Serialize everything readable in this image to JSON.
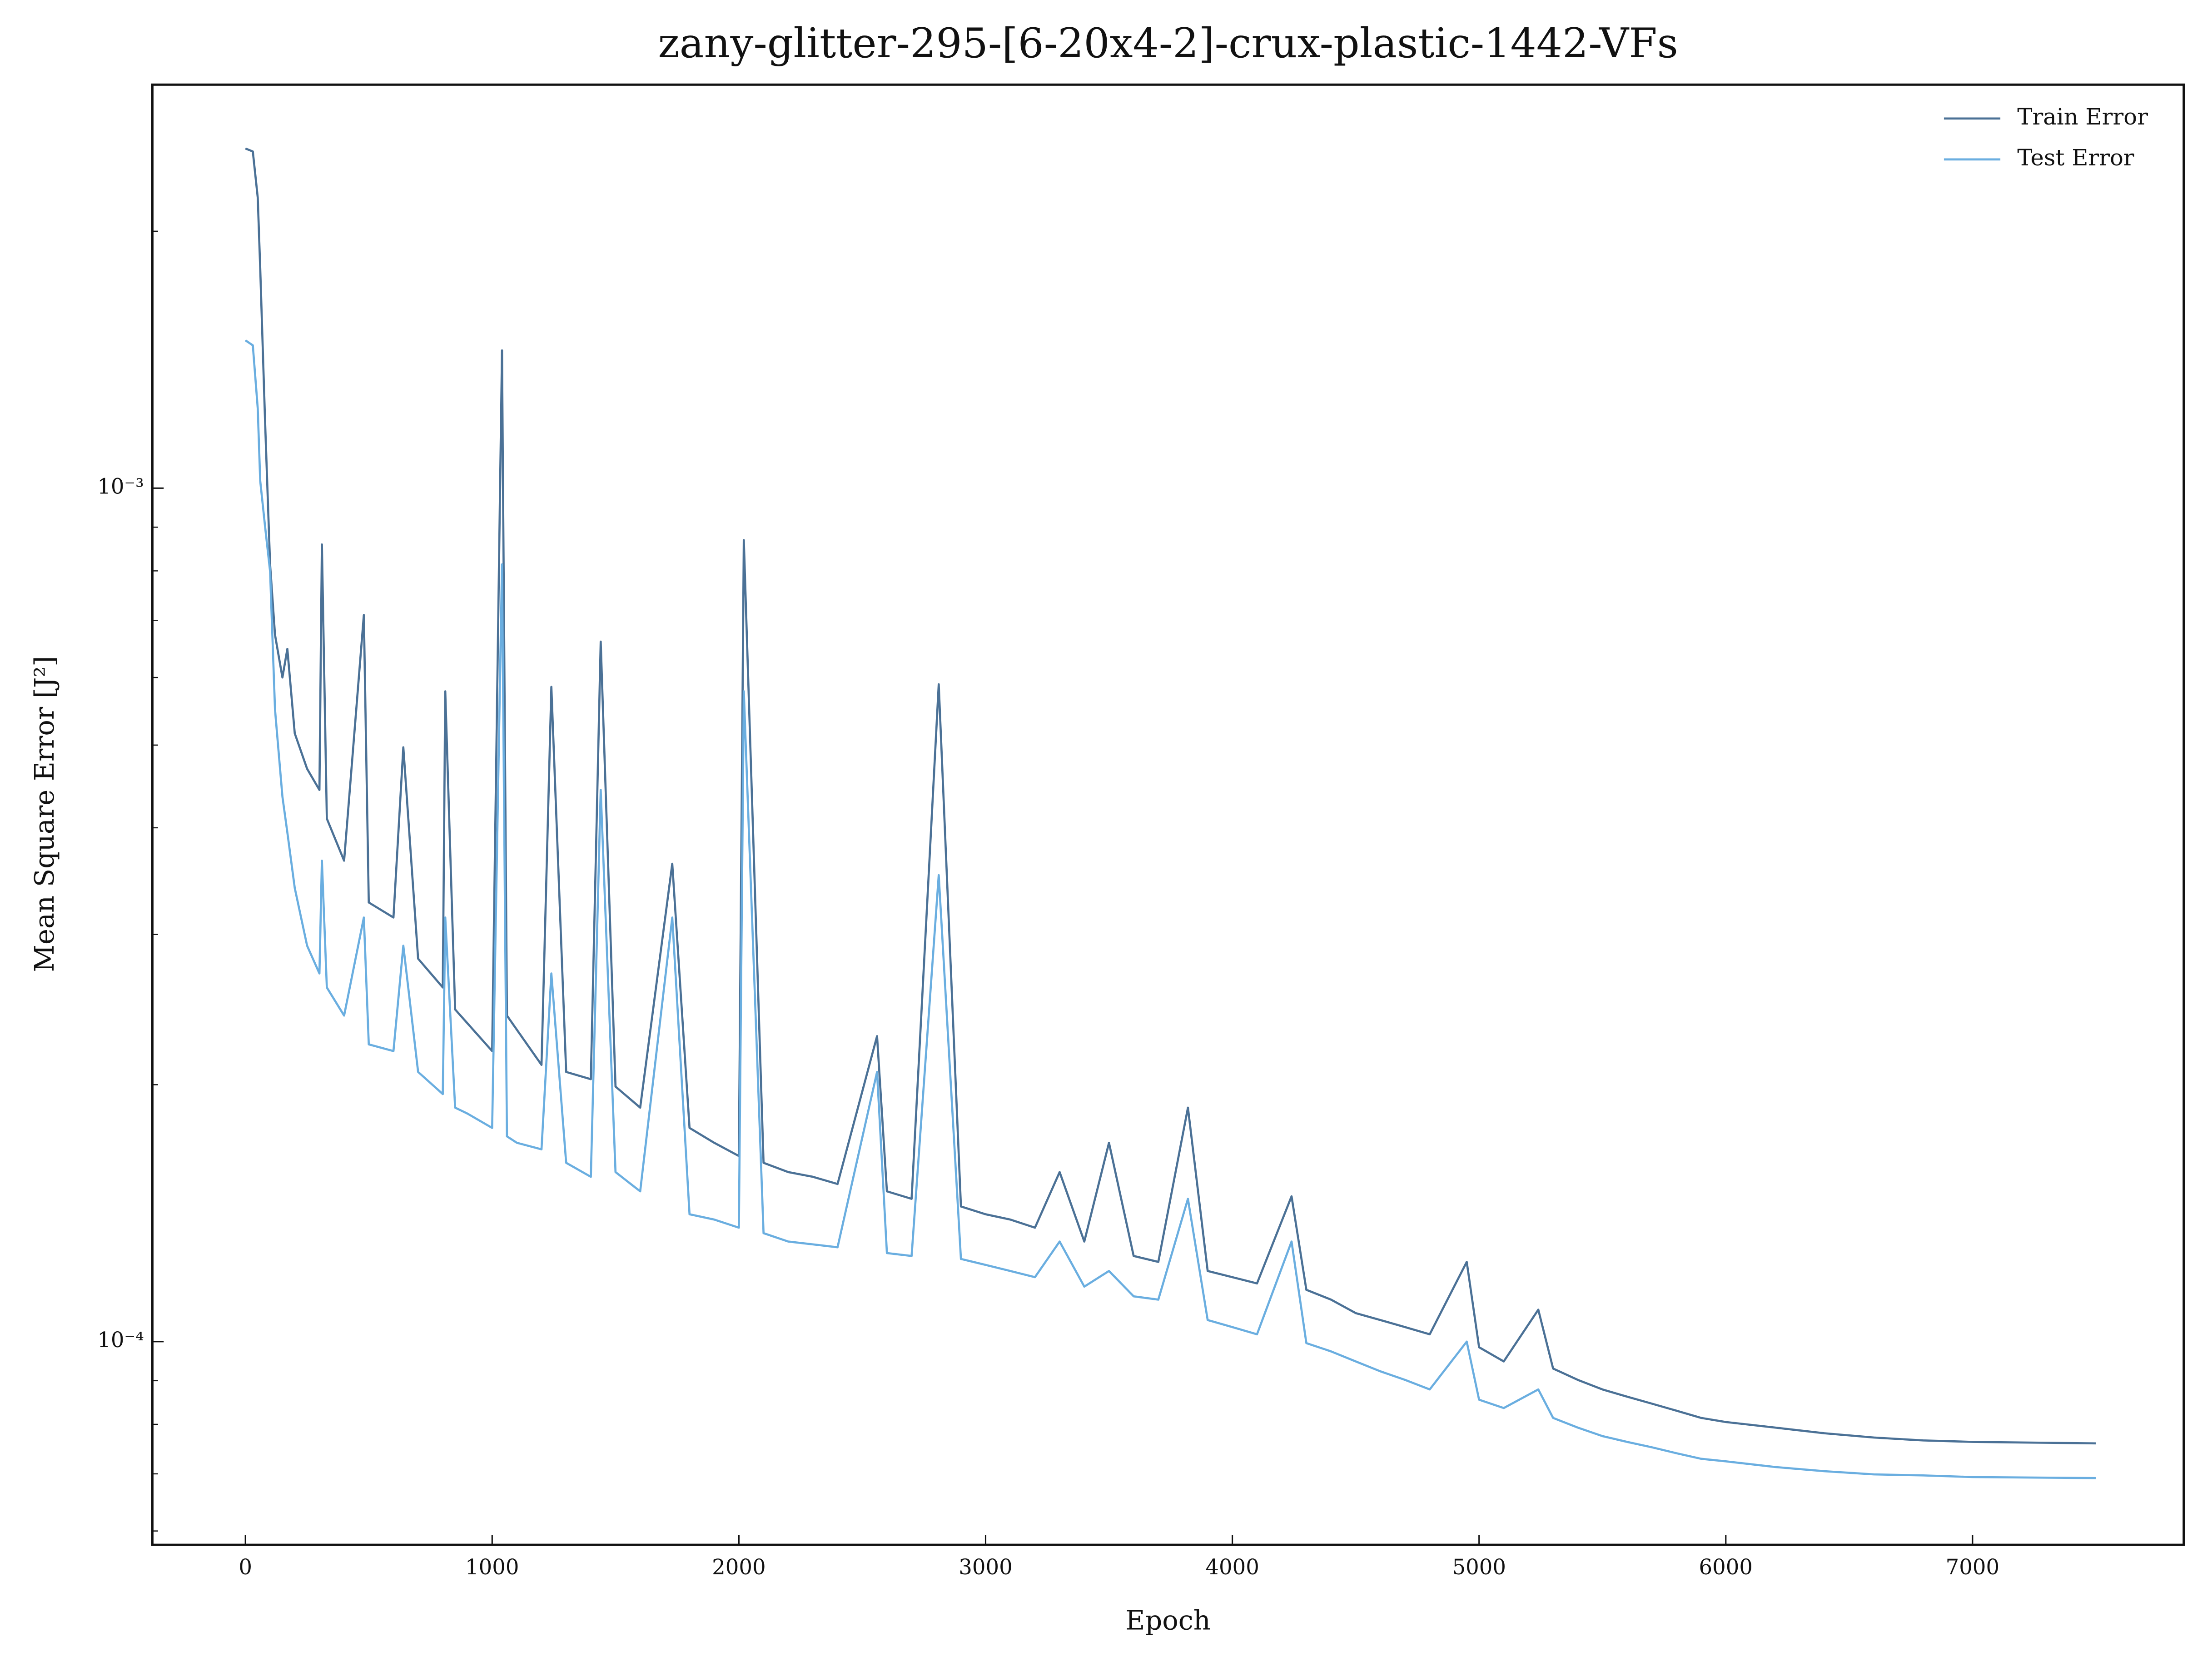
{
  "chart_data": {
    "type": "line",
    "title": "zany-glitter-295-[6-20x4-2]-crux-plastic-1442-VFs",
    "xlabel": "Epoch",
    "ylabel": "Mean Square Error [J²]",
    "yscale": "log",
    "grid": false,
    "legend": "upper right",
    "xlim": [
      -377,
      7856
    ],
    "xticks": [
      0,
      1000,
      2000,
      3000,
      4000,
      5000,
      6000,
      7000
    ],
    "ylim": [
      5.78e-05,
      0.00297
    ],
    "yticks": [
      {
        "value": 0.0001,
        "label": "10⁻⁴"
      },
      {
        "value": 0.001,
        "label": "10⁻³"
      }
    ],
    "yminorticks": [
      6e-05,
      7e-05,
      8e-05,
      9e-05,
      0.0002,
      0.0003,
      0.0004,
      0.0005,
      0.0006,
      0.0007,
      0.0008,
      0.0009,
      0.002
    ],
    "x": [
      0,
      30,
      50,
      60,
      80,
      100,
      120,
      150,
      170,
      200,
      250,
      300,
      310,
      330,
      400,
      480,
      500,
      600,
      640,
      700,
      800,
      810,
      850,
      900,
      1000,
      1040,
      1060,
      1100,
      1200,
      1240,
      1300,
      1400,
      1440,
      1500,
      1600,
      1730,
      1800,
      1900,
      2000,
      2020,
      2100,
      2200,
      2300,
      2400,
      2560,
      2600,
      2700,
      2810,
      2900,
      3000,
      3100,
      3200,
      3300,
      3400,
      3500,
      3600,
      3700,
      3820,
      3900,
      4000,
      4100,
      4240,
      4300,
      4400,
      4500,
      4600,
      4700,
      4800,
      4950,
      5000,
      5100,
      5240,
      5300,
      5400,
      5500,
      5600,
      5700,
      5800,
      5900,
      6000,
      6200,
      6400,
      6600,
      6800,
      7000,
      7500
    ],
    "series": [
      {
        "name": "Train Error",
        "color": "#4b7196",
        "values": [
          0.0025,
          0.00248,
          0.00219,
          0.00181,
          0.00119,
          0.000814,
          0.000673,
          0.0006,
          0.000648,
          0.000516,
          0.000469,
          0.000443,
          0.000859,
          0.00041,
          0.000366,
          0.00071,
          0.000327,
          0.000314,
          0.000497,
          0.000281,
          0.00026,
          0.000578,
          0.000245,
          0.000236,
          0.000219,
          0.00145,
          0.000241,
          0.000232,
          0.000211,
          0.000585,
          0.000207,
          0.000203,
          0.000661,
          0.000199,
          0.000188,
          0.000363,
          0.000178,
          0.000171,
          0.000165,
          0.000869,
          0.000162,
          0.000158,
          0.000156,
          0.000153,
          0.000228,
          0.00015,
          0.000147,
          0.000589,
          0.000144,
          0.000141,
          0.000139,
          0.000136,
          0.000158,
          0.000131,
          0.000171,
          0.000126,
          0.000124,
          0.000188,
          0.000121,
          0.000119,
          0.000117,
          0.000148,
          0.000115,
          0.000112,
          0.000108,
          0.000106,
          0.000104,
          0.000102,
          0.000124,
          9.85e-05,
          9.48e-05,
          0.000109,
          9.3e-05,
          9.02e-05,
          8.79e-05,
          8.62e-05,
          8.46e-05,
          8.3e-05,
          8.14e-05,
          8.05e-05,
          7.93e-05,
          7.81e-05,
          7.72e-05,
          7.66e-05,
          7.63e-05,
          7.6e-05
        ]
      },
      {
        "name": "Test Error",
        "color": "#6aaee0",
        "values": [
          0.00149,
          0.00147,
          0.00124,
          0.00102,
          0.0009,
          0.000799,
          0.00055,
          0.000435,
          0.000395,
          0.00034,
          0.000291,
          0.00027,
          0.000366,
          0.00026,
          0.000241,
          0.000314,
          0.000223,
          0.000219,
          0.000291,
          0.000207,
          0.000195,
          0.000314,
          0.000188,
          0.000185,
          0.000178,
          0.000814,
          0.000174,
          0.000171,
          0.000168,
          0.00027,
          0.000162,
          0.000156,
          0.000443,
          0.000158,
          0.00015,
          0.000314,
          0.000141,
          0.000139,
          0.000136,
          0.000578,
          0.000134,
          0.000131,
          0.00013,
          0.000129,
          0.000207,
          0.000127,
          0.000126,
          0.000352,
          0.000125,
          0.000123,
          0.000121,
          0.000119,
          0.000131,
          0.000116,
          0.000121,
          0.000113,
          0.000112,
          0.000147,
          0.000106,
          0.000104,
          0.000102,
          0.000131,
          9.96e-05,
          9.74e-05,
          9.48e-05,
          9.23e-05,
          9.02e-05,
          8.79e-05,
          0.0001,
          8.55e-05,
          8.36e-05,
          8.79e-05,
          8.14e-05,
          7.93e-05,
          7.75e-05,
          7.63e-05,
          7.52e-05,
          7.4e-05,
          7.29e-05,
          7.24e-05,
          7.13e-05,
          7.05e-05,
          6.99e-05,
          6.97e-05,
          6.94e-05,
          6.92e-05
        ]
      }
    ]
  }
}
